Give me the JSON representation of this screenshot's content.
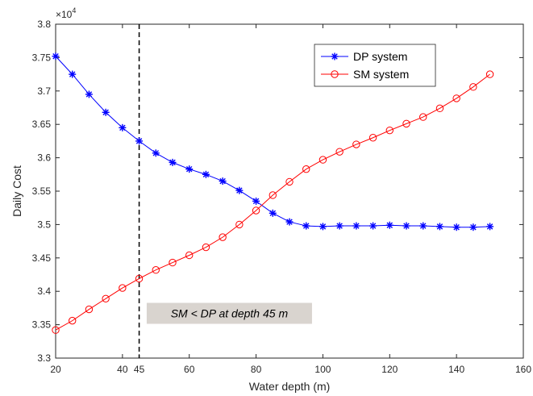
{
  "chart_data": {
    "type": "line",
    "title": "",
    "xlabel": "Water depth (m)",
    "ylabel": "Daily Cost",
    "xlim": [
      20,
      160
    ],
    "ylim": [
      3.3,
      3.8
    ],
    "y_exponent_label": "×10",
    "y_exponent_power": "4",
    "x_ticks": [
      20,
      40,
      45,
      60,
      80,
      100,
      120,
      140,
      160
    ],
    "x_tick_labels": [
      "20",
      "40",
      "45",
      "60",
      "80",
      "100",
      "120",
      "140",
      "160"
    ],
    "y_ticks": [
      3.3,
      3.35,
      3.4,
      3.45,
      3.5,
      3.55,
      3.6,
      3.65,
      3.7,
      3.75,
      3.8
    ],
    "y_tick_labels": [
      "3.3",
      "3.35",
      "3.4",
      "3.45",
      "3.5",
      "3.55",
      "3.6",
      "3.65",
      "3.7",
      "3.75",
      "3.8"
    ],
    "grid": false,
    "legend_position": "top-right",
    "x": [
      20,
      25,
      30,
      35,
      40,
      45,
      50,
      55,
      60,
      65,
      70,
      75,
      80,
      85,
      90,
      95,
      100,
      105,
      110,
      115,
      120,
      125,
      130,
      135,
      140,
      145,
      150
    ],
    "series": [
      {
        "name": "DP system",
        "color": "#0000ff",
        "marker": "asterisk",
        "values": [
          3.752,
          3.725,
          3.695,
          3.668,
          3.645,
          3.625,
          3.607,
          3.593,
          3.583,
          3.575,
          3.565,
          3.551,
          3.535,
          3.517,
          3.504,
          3.498,
          3.497,
          3.498,
          3.498,
          3.498,
          3.499,
          3.498,
          3.498,
          3.497,
          3.496,
          3.496,
          3.497
        ]
      },
      {
        "name": "SM system",
        "color": "#ff0000",
        "marker": "circle",
        "values": [
          3.342,
          3.356,
          3.373,
          3.389,
          3.405,
          3.419,
          3.432,
          3.443,
          3.454,
          3.466,
          3.481,
          3.5,
          3.521,
          3.544,
          3.564,
          3.583,
          3.597,
          3.609,
          3.62,
          3.63,
          3.641,
          3.651,
          3.661,
          3.674,
          3.689,
          3.706,
          3.725
        ]
      }
    ],
    "vline": {
      "x": 45,
      "style": "dashed",
      "color": "#000000"
    },
    "annotation": {
      "text": "SM < DP at depth 45 m",
      "x": 72,
      "y": 3.367,
      "background": "#d9d4cf"
    }
  }
}
